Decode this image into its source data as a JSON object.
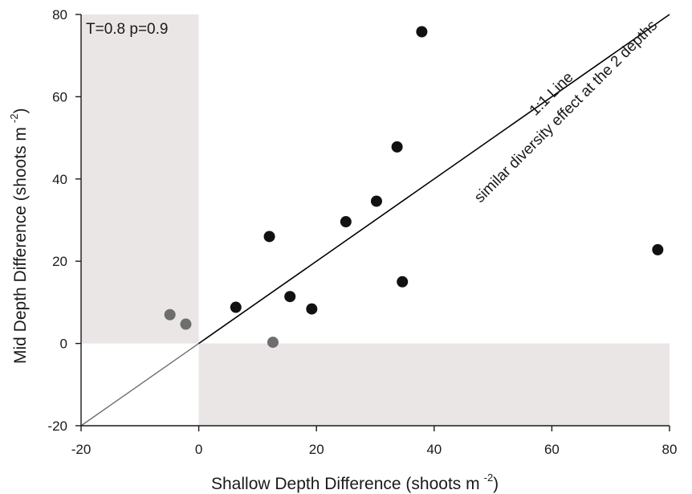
{
  "chart_data": {
    "type": "scatter",
    "title": "",
    "xlabel": "Shallow Depth Difference (shoots m",
    "xlabel_sup": "-2",
    "xlabel_close": ")",
    "ylabel": "Mid Depth Difference (shoots m",
    "ylabel_sup": "-2",
    "ylabel_close": ")",
    "xlim": [
      -20,
      80
    ],
    "ylim": [
      -20,
      80
    ],
    "xticks": [
      "-20",
      "0",
      "20",
      "40",
      "60",
      "80"
    ],
    "yticks": [
      "-20",
      "0",
      "20",
      "40",
      "60",
      "80"
    ],
    "grid": false,
    "stat_label": "T=0.8 p=0.9",
    "reference_line": {
      "from": [
        -20,
        -20
      ],
      "to": [
        80,
        80
      ],
      "label_above": "1:1 Line",
      "label_below": "similar diversity effect at the 2 depths"
    },
    "shaded_regions": [
      {
        "x": [
          -20,
          0
        ],
        "y": [
          0,
          80
        ]
      },
      {
        "x": [
          0,
          80
        ],
        "y": [
          -20,
          0
        ]
      }
    ],
    "series": [
      {
        "color": "#111111",
        "points": [
          {
            "x": 37.9,
            "y": 75.8
          },
          {
            "x": 33.7,
            "y": 47.8
          },
          {
            "x": 30.2,
            "y": 34.6
          },
          {
            "x": 25.0,
            "y": 29.6
          },
          {
            "x": 12.0,
            "y": 26.0
          },
          {
            "x": 34.6,
            "y": 15.0
          },
          {
            "x": 15.5,
            "y": 11.4
          },
          {
            "x": 19.2,
            "y": 8.4
          },
          {
            "x": 6.3,
            "y": 8.8
          },
          {
            "x": 78.0,
            "y": 22.8
          }
        ]
      },
      {
        "color": "#6e6e6e",
        "points": [
          {
            "x": -4.9,
            "y": 7.0
          },
          {
            "x": -2.2,
            "y": 4.7
          },
          {
            "x": 12.6,
            "y": 0.3
          }
        ]
      }
    ],
    "colors": {
      "shade": "#e9e6e5",
      "axis": "#1a1a1a",
      "line_inside": "#6e6e6e",
      "line_outside": "#000000"
    }
  }
}
